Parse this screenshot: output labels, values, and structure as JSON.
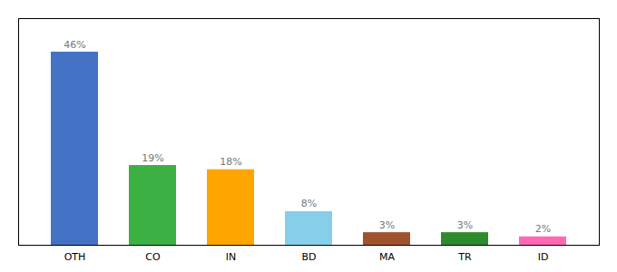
{
  "chart_data": {
    "type": "bar",
    "categories": [
      "OTH",
      "CO",
      "IN",
      "BD",
      "MA",
      "TR",
      "ID"
    ],
    "values": [
      46,
      19,
      18,
      8,
      3,
      3,
      2
    ],
    "value_labels": [
      "46%",
      "19%",
      "18%",
      "8%",
      "3%",
      "3%",
      "2%"
    ],
    "colors": [
      "#4472c4",
      "#3cb043",
      "#ffa500",
      "#87ceeb",
      "#a0522d",
      "#2d8b2d",
      "#ff69b4"
    ],
    "ylim": [
      0,
      54
    ],
    "data_labels": true,
    "tick_labels": "x",
    "grid": false
  }
}
